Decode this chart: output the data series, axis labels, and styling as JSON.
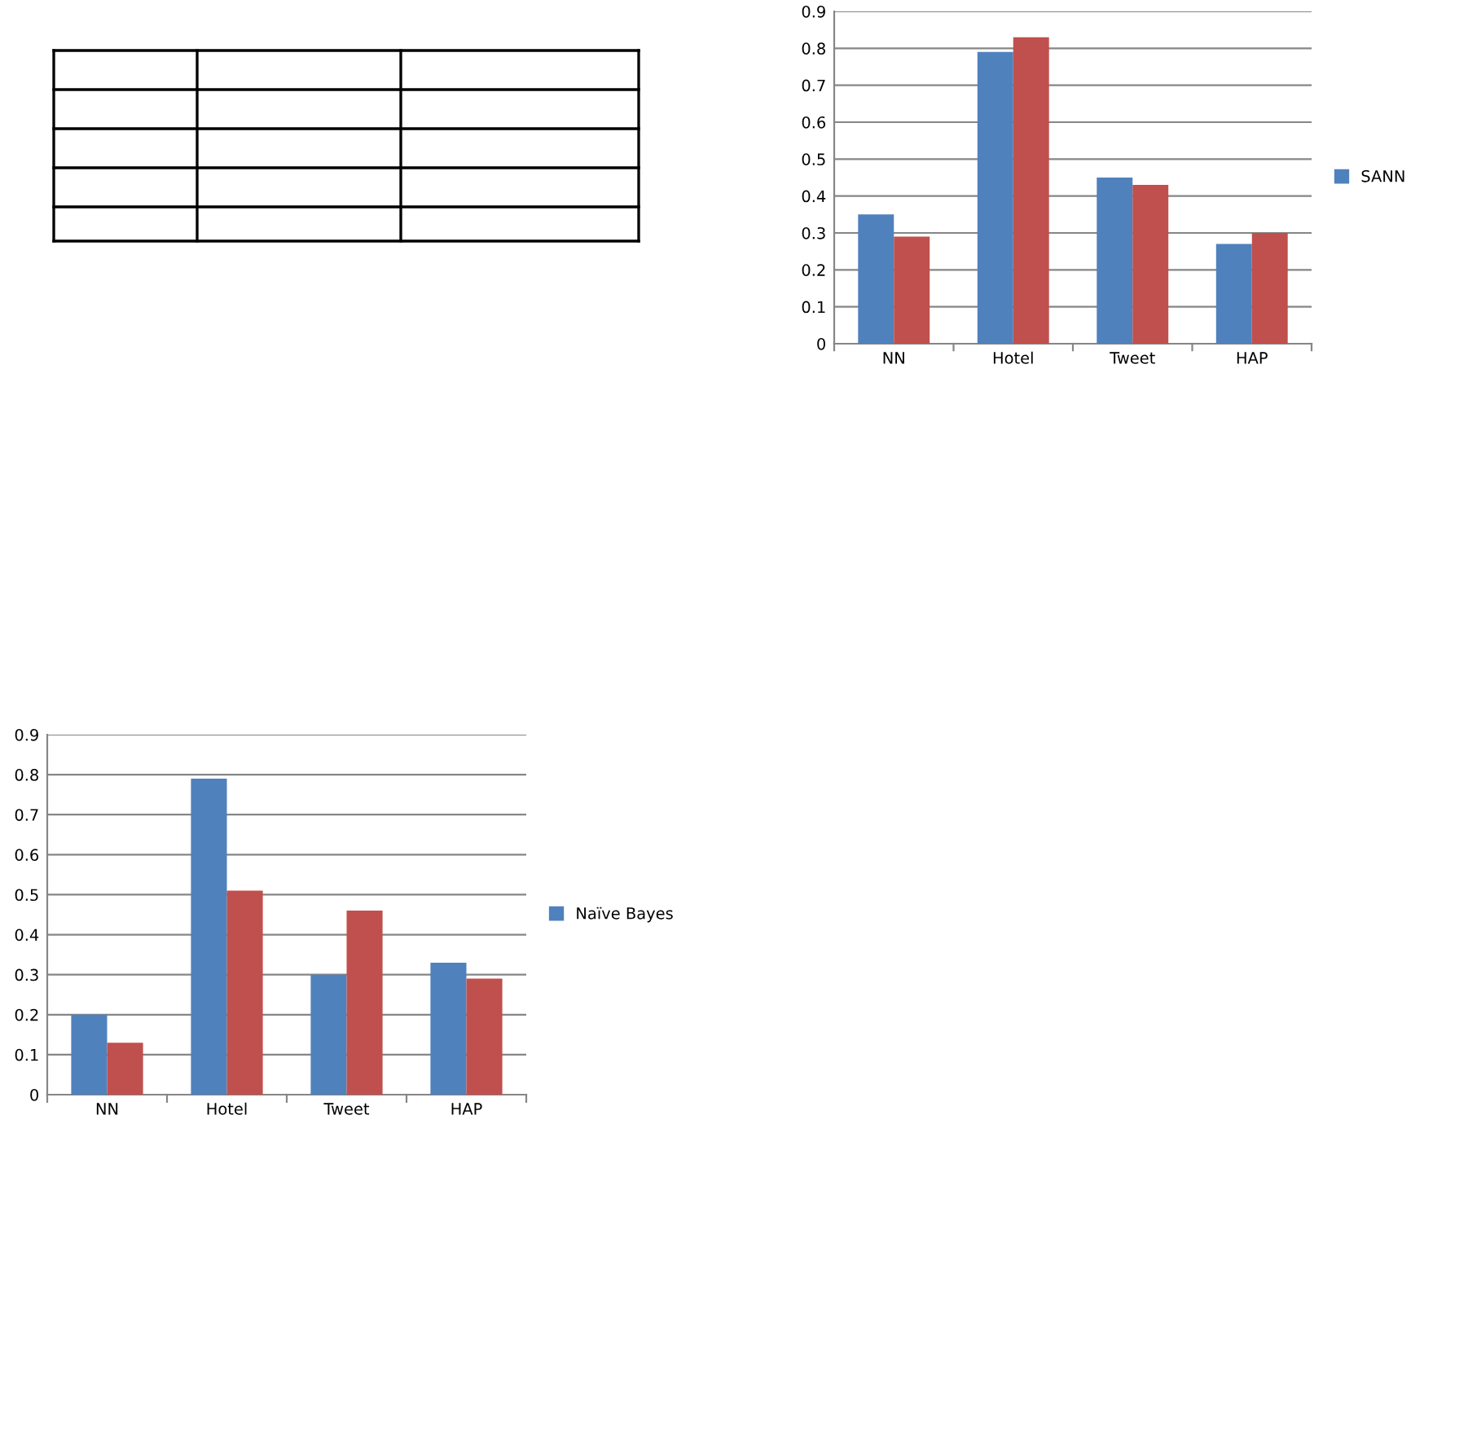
{
  "chart_data": [
    {
      "type": "bar",
      "categories": [
        "NN",
        "Hotel",
        "Tweet",
        "HAP"
      ],
      "series": [
        {
          "name": "SANN",
          "color": "#4f81bd",
          "values": [
            0.35,
            0.79,
            0.45,
            0.27
          ]
        },
        {
          "color": "#c0504d",
          "values": [
            0.29,
            0.83,
            0.43,
            0.3
          ]
        }
      ],
      "ylim": [
        0,
        0.9
      ],
      "yticks": [
        {
          "value": 0,
          "label": "0"
        },
        0.1,
        0.2,
        0.3,
        0.4,
        0.5,
        0.6,
        0.7,
        0.8,
        0.9
      ],
      "grid": "y",
      "legend": "right"
    },
    {
      "type": "bar",
      "categories": [
        "NN",
        "Hotel",
        "Tweet",
        "HAP"
      ],
      "series": [
        {
          "name": "Naïve Bayes",
          "color": "#4f81bd",
          "values": [
            0.2,
            0.79,
            0.3,
            0.33
          ]
        },
        {
          "color": "#c0504d",
          "values": [
            0.13,
            0.51,
            0.46,
            0.29
          ]
        }
      ],
      "ylim": [
        0,
        0.9
      ],
      "yticks": [
        {
          "value": 0,
          "label": "0"
        },
        0.1,
        0.2,
        0.3,
        0.4,
        0.5,
        0.6,
        0.7,
        0.8,
        0.9
      ],
      "grid": "y",
      "legend": "right"
    }
  ]
}
